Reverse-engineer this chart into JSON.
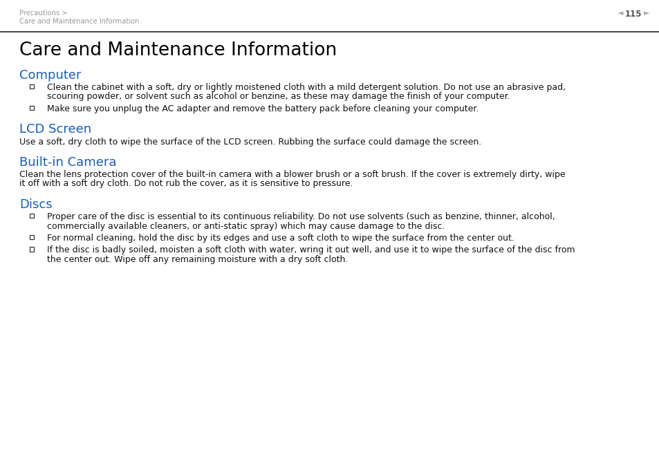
{
  "bg_color": "#ffffff",
  "header_page": "115",
  "header_color": "#999999",
  "separator_color": "#222222",
  "title": "Care and Maintenance Information",
  "title_fontsize": 19,
  "title_color": "#000000",
  "section_color": "#1a5cb0",
  "section_fontsize": 13,
  "body_fontsize": 9.0,
  "body_color": "#111111",
  "sections": [
    {
      "heading": "Computer",
      "paragraphs": [
        {
          "bullet": true,
          "lines": [
            "Clean the cabinet with a soft, dry or lightly moistened cloth with a mild detergent solution. Do not use an abrasive pad,",
            "scouring powder, or solvent such as alcohol or benzine, as these may damage the finish of your computer."
          ]
        },
        {
          "bullet": true,
          "lines": [
            "Make sure you unplug the AC adapter and remove the battery pack before cleaning your computer."
          ]
        }
      ]
    },
    {
      "heading": "LCD Screen",
      "paragraphs": [
        {
          "bullet": false,
          "lines": [
            "Use a soft, dry cloth to wipe the surface of the LCD screen. Rubbing the surface could damage the screen."
          ]
        }
      ]
    },
    {
      "heading": "Built-in Camera",
      "paragraphs": [
        {
          "bullet": false,
          "lines": [
            "Clean the lens protection cover of the built-in camera with a blower brush or a soft brush. If the cover is extremely dirty, wipe",
            "it off with a soft dry cloth. Do not rub the cover, as it is sensitive to pressure."
          ]
        }
      ]
    },
    {
      "heading": "Discs",
      "paragraphs": [
        {
          "bullet": true,
          "lines": [
            "Proper care of the disc is essential to its continuous reliability. Do not use solvents (such as benzine, thinner, alcohol,",
            "commercially available cleaners, or anti-static spray) which may cause damage to the disc."
          ]
        },
        {
          "bullet": true,
          "lines": [
            "For normal cleaning, hold the disc by its edges and use a soft cloth to wipe the surface from the center out."
          ]
        },
        {
          "bullet": true,
          "lines": [
            "If the disc is badly soiled, moisten a soft cloth with water, wring it out well, and use it to wipe the surface of the disc from",
            "the center out. Wipe off any remaining moisture with a dry soft cloth."
          ]
        }
      ]
    }
  ]
}
